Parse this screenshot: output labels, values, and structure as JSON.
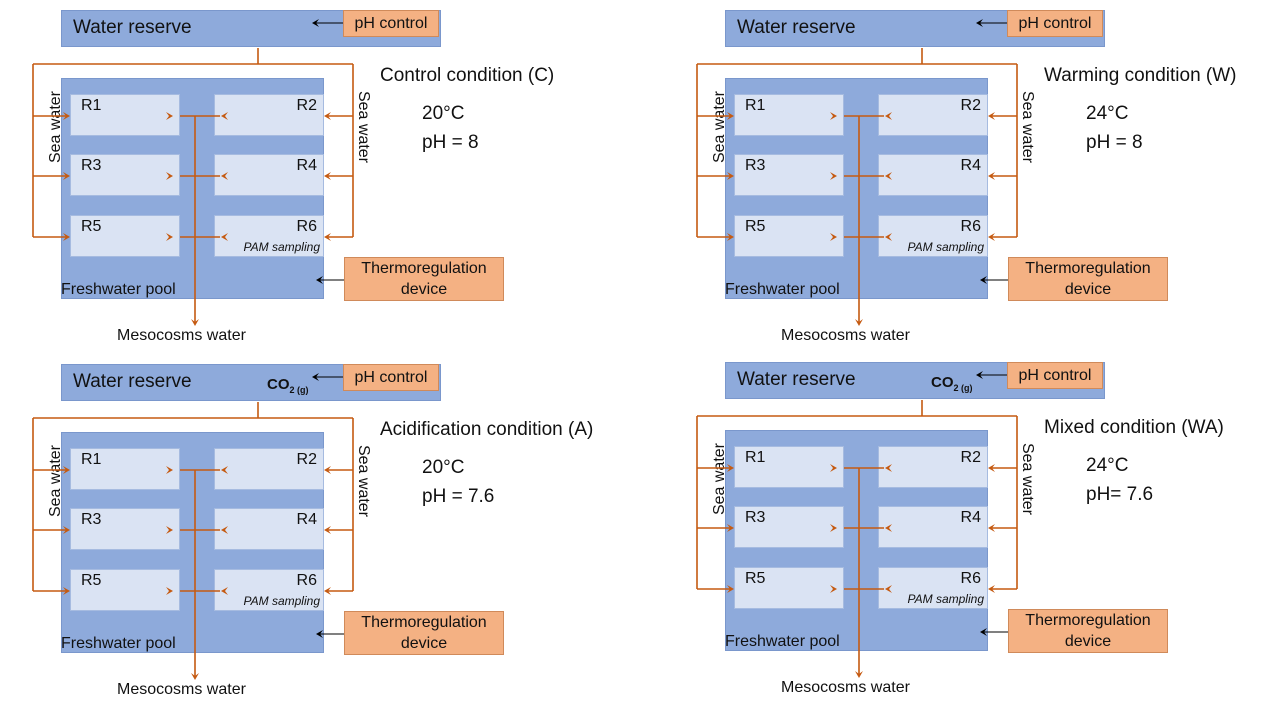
{
  "common": {
    "water_reserve": "Water reserve",
    "ph_control": "pH control",
    "freshwater_pool": "Freshwater pool",
    "thermoregulation": "Thermoregulation device",
    "thermoregulation_line1": "Thermoregulation",
    "thermoregulation_line2": "device",
    "mesocosms_water": "Mesocosms water",
    "sea_water": "Sea water",
    "pam_sampling": "PAM sampling",
    "co2_label": "CO",
    "co2_sub": "2 (g)",
    "tanks": [
      "R1",
      "R2",
      "R3",
      "R4",
      "R5",
      "R6"
    ]
  },
  "colors": {
    "flow": "#c55a11",
    "reserve": "#8eaadb",
    "tank": "#dae3f3",
    "device": "#f4b183"
  },
  "panels": [
    {
      "condition": "Control condition (C)",
      "temperature": "20°C",
      "ph": "pH = 8",
      "co2": false
    },
    {
      "condition": "Warming condition (W)",
      "temperature": "24°C",
      "ph": "pH = 8",
      "co2": false
    },
    {
      "condition": "Acidification condition (A)",
      "temperature": "20°C",
      "ph": "pH = 7.6",
      "co2": true
    },
    {
      "condition": "Mixed condition (WA)",
      "temperature": "24°C",
      "ph": "pH= 7.6",
      "co2": true
    }
  ]
}
